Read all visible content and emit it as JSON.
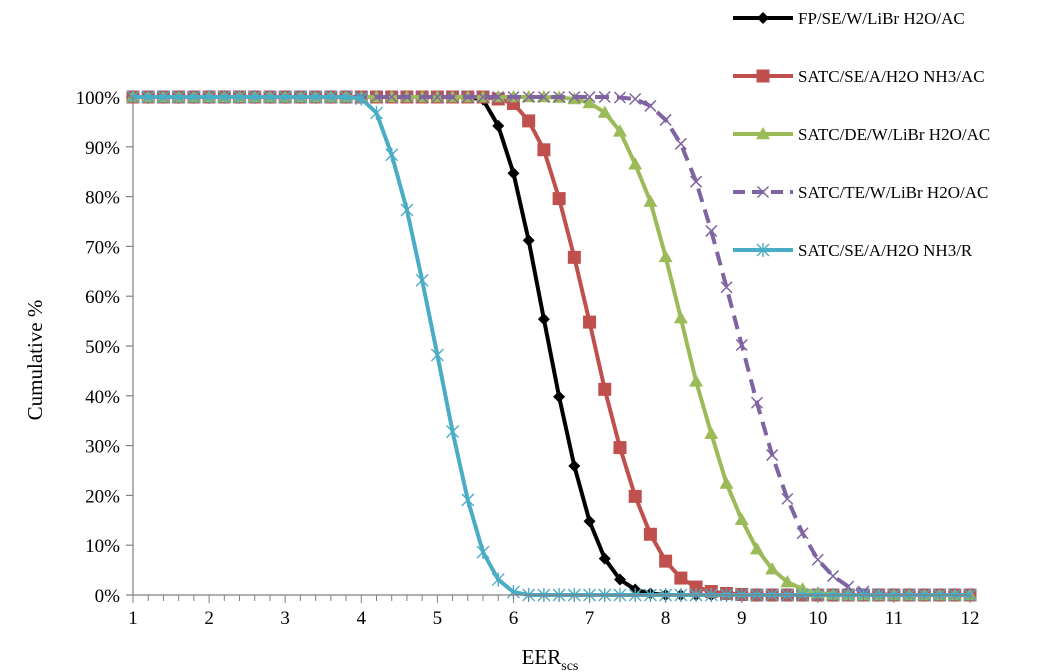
{
  "chart_data": {
    "type": "line",
    "title": "",
    "xlabel": "EER",
    "xlabel_sub": "scs",
    "ylabel": "Cumulative %",
    "xlim": [
      1,
      12
    ],
    "ylim": [
      0,
      100
    ],
    "xticks": [
      1,
      2,
      3,
      4,
      5,
      6,
      7,
      8,
      9,
      10,
      11,
      12
    ],
    "yticks": [
      "0%",
      "10%",
      "20%",
      "30%",
      "40%",
      "50%",
      "60%",
      "70%",
      "80%",
      "90%",
      "100%"
    ],
    "grid": false,
    "legend_position": "top-right",
    "series": [
      {
        "name": "FP/SE/W/LiBr H2O/AC",
        "color": "#000000",
        "marker": "diamond",
        "dashed": false,
        "x": [
          1.0,
          1.2,
          1.4,
          1.6,
          1.8,
          2.0,
          2.2,
          2.4,
          2.6,
          2.8,
          3.0,
          3.2,
          3.4,
          3.6,
          3.8,
          4.0,
          4.2,
          4.4,
          4.6,
          4.8,
          5.0,
          5.2,
          5.4,
          5.6,
          5.8,
          6.0,
          6.2,
          6.4,
          6.6,
          6.8,
          7.0,
          7.2,
          7.4,
          7.6,
          7.8,
          8.0,
          8.2,
          8.4,
          8.6,
          8.8,
          9.0,
          9.2,
          9.4,
          9.6,
          9.8,
          10.0,
          10.2,
          10.4,
          10.6,
          10.8,
          11.0,
          11.2,
          11.4,
          11.6,
          11.8,
          12.0
        ],
        "y": [
          100,
          100,
          100,
          100,
          100,
          100,
          100,
          100,
          100,
          100,
          100,
          100,
          100,
          100,
          100,
          100,
          100,
          100,
          100,
          100,
          100,
          100,
          100,
          99.5,
          94.2,
          84.7,
          71.2,
          55.4,
          39.8,
          25.9,
          14.8,
          7.3,
          3.1,
          1.1,
          0.3,
          0,
          0,
          0,
          0,
          0,
          0,
          0,
          0,
          0,
          0,
          0,
          0,
          0,
          0,
          0,
          0,
          0,
          0,
          0,
          0,
          0
        ]
      },
      {
        "name": "SATC/SE/A/H2O NH3/AC",
        "color": "#c0504d",
        "marker": "square",
        "dashed": false,
        "x": [
          1.0,
          1.2,
          1.4,
          1.6,
          1.8,
          2.0,
          2.2,
          2.4,
          2.6,
          2.8,
          3.0,
          3.2,
          3.4,
          3.6,
          3.8,
          4.0,
          4.2,
          4.4,
          4.6,
          4.8,
          5.0,
          5.2,
          5.4,
          5.6,
          5.8,
          6.0,
          6.2,
          6.4,
          6.6,
          6.8,
          7.0,
          7.2,
          7.4,
          7.6,
          7.8,
          8.0,
          8.2,
          8.4,
          8.6,
          8.8,
          9.0,
          9.2,
          9.4,
          9.6,
          9.8,
          10.0,
          10.2,
          10.4,
          10.6,
          10.8,
          11.0,
          11.2,
          11.4,
          11.6,
          11.8,
          12.0
        ],
        "y": [
          100,
          100,
          100,
          100,
          100,
          100,
          100,
          100,
          100,
          100,
          100,
          100,
          100,
          100,
          100,
          100,
          100,
          100,
          100,
          100,
          100,
          100,
          100,
          100,
          99.6,
          98.7,
          95.2,
          89.4,
          79.6,
          67.8,
          54.8,
          41.3,
          29.6,
          19.8,
          12.2,
          6.8,
          3.4,
          1.6,
          0.7,
          0.3,
          0.1,
          0,
          0,
          0,
          0,
          0,
          0,
          0,
          0,
          0,
          0,
          0,
          0,
          0,
          0,
          0
        ]
      },
      {
        "name": "SATC/DE/W/LiBr H2O/AC",
        "color": "#9bbb59",
        "marker": "triangle",
        "dashed": false,
        "x": [
          1.0,
          1.2,
          1.4,
          1.6,
          1.8,
          2.0,
          2.2,
          2.4,
          2.6,
          2.8,
          3.0,
          3.2,
          3.4,
          3.6,
          3.8,
          4.0,
          4.2,
          4.4,
          4.6,
          4.8,
          5.0,
          5.2,
          5.4,
          5.6,
          5.8,
          6.0,
          6.2,
          6.4,
          6.6,
          6.8,
          7.0,
          7.2,
          7.4,
          7.6,
          7.8,
          8.0,
          8.2,
          8.4,
          8.6,
          8.8,
          9.0,
          9.2,
          9.4,
          9.6,
          9.8,
          10.0,
          10.2,
          10.4,
          10.6,
          10.8,
          11.0,
          11.2,
          11.4,
          11.6,
          11.8,
          12.0
        ],
        "y": [
          100,
          100,
          100,
          100,
          100,
          100,
          100,
          100,
          100,
          100,
          100,
          100,
          100,
          100,
          100,
          100,
          100,
          100,
          100,
          100,
          100,
          100,
          100,
          100,
          100,
          100,
          100,
          100,
          99.9,
          99.6,
          98.8,
          96.9,
          93.1,
          86.5,
          79.0,
          67.9,
          55.6,
          42.9,
          32.4,
          22.4,
          15.1,
          9.2,
          5.2,
          2.6,
          1.2,
          0.4,
          0.1,
          0,
          0,
          0,
          0,
          0,
          0,
          0,
          0,
          0
        ]
      },
      {
        "name": "SATC/TE/W/LiBr H2O/AC",
        "color": "#8064a2",
        "marker": "x",
        "dashed": true,
        "x": [
          1.0,
          1.2,
          1.4,
          1.6,
          1.8,
          2.0,
          2.2,
          2.4,
          2.6,
          2.8,
          3.0,
          3.2,
          3.4,
          3.6,
          3.8,
          4.0,
          4.2,
          4.4,
          4.6,
          4.8,
          5.0,
          5.2,
          5.4,
          5.6,
          5.8,
          6.0,
          6.2,
          6.4,
          6.6,
          6.8,
          7.0,
          7.2,
          7.4,
          7.6,
          7.8,
          8.0,
          8.2,
          8.4,
          8.6,
          8.8,
          9.0,
          9.2,
          9.4,
          9.6,
          9.8,
          10.0,
          10.2,
          10.4,
          10.6,
          10.8,
          11.0,
          11.2,
          11.4,
          11.6,
          11.8,
          12.0
        ],
        "y": [
          100,
          100,
          100,
          100,
          100,
          100,
          100,
          100,
          100,
          100,
          100,
          100,
          100,
          100,
          100,
          100,
          100,
          100,
          100,
          100,
          100,
          100,
          100,
          100,
          100,
          100,
          100,
          100,
          100,
          100,
          100,
          100,
          99.9,
          99.6,
          98.2,
          95.4,
          90.6,
          83.0,
          73.1,
          61.8,
          50.2,
          38.6,
          28.1,
          19.3,
          12.4,
          7.1,
          3.8,
          1.7,
          0.7,
          0.2,
          0,
          0,
          0,
          0,
          0,
          0
        ]
      },
      {
        "name": "SATC/SE/A/H2O NH3/R",
        "color": "#4bacc6",
        "marker": "asterisk",
        "dashed": false,
        "x": [
          1.0,
          1.2,
          1.4,
          1.6,
          1.8,
          2.0,
          2.2,
          2.4,
          2.6,
          2.8,
          3.0,
          3.2,
          3.4,
          3.6,
          3.8,
          4.0,
          4.2,
          4.4,
          4.6,
          4.8,
          5.0,
          5.2,
          5.4,
          5.6,
          5.8,
          6.0,
          6.2,
          6.4,
          6.6,
          6.8,
          7.0,
          7.2,
          7.4,
          7.6,
          7.8,
          8.0,
          8.2,
          8.4,
          8.6,
          8.8,
          9.0,
          9.2,
          9.4,
          9.6,
          9.8,
          10.0,
          10.2,
          10.4,
          10.6,
          10.8,
          11.0,
          11.2,
          11.4,
          11.6,
          11.8,
          12.0
        ],
        "y": [
          100,
          100,
          100,
          100,
          100,
          100,
          100,
          100,
          100,
          100,
          100,
          100,
          100,
          100,
          100,
          99.7,
          96.8,
          88.4,
          77.3,
          63.2,
          48.2,
          32.8,
          19.1,
          8.6,
          3.1,
          0.6,
          0,
          0,
          0,
          0,
          0,
          0,
          0,
          0,
          0,
          0,
          0,
          0,
          0,
          0,
          0,
          0,
          0,
          0,
          0,
          0,
          0,
          0,
          0,
          0,
          0,
          0,
          0,
          0,
          0,
          0
        ]
      }
    ]
  }
}
